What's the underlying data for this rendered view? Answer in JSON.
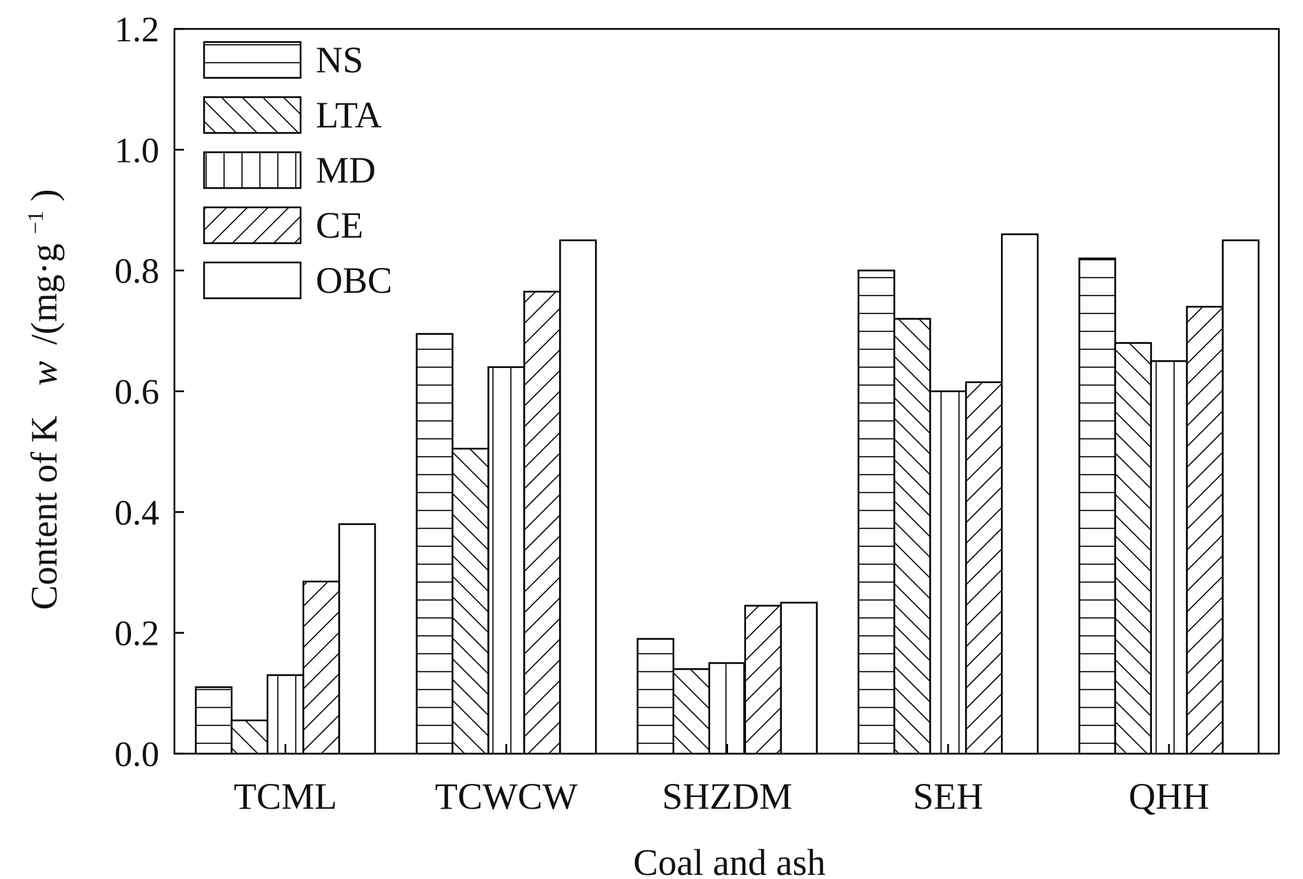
{
  "chart_data": {
    "type": "bar",
    "xlabel": "Coal and ash",
    "ylabel_prefix": "Content of K",
    "ylabel_var": "w",
    "ylabel_unit_open": "/(mg·g",
    "ylabel_unit_sup": "−1",
    "ylabel_unit_close": ")",
    "ylim": [
      0.0,
      1.2
    ],
    "yticks": [
      "0.0",
      "0.2",
      "0.4",
      "0.6",
      "0.8",
      "1.0",
      "1.2"
    ],
    "grid": false,
    "legend_position": "top-left",
    "categories": [
      "TCML",
      "TCWCW",
      "SHZDM",
      "SEH",
      "QHH"
    ],
    "series": [
      {
        "name": "NS",
        "pattern": "horizontal",
        "values": [
          0.11,
          0.695,
          0.19,
          0.8,
          0.82
        ]
      },
      {
        "name": "LTA",
        "pattern": "backslash",
        "values": [
          0.055,
          0.505,
          0.14,
          0.72,
          0.68
        ]
      },
      {
        "name": "MD",
        "pattern": "vertical",
        "values": [
          0.13,
          0.64,
          0.15,
          0.6,
          0.65
        ]
      },
      {
        "name": "CE",
        "pattern": "slash",
        "values": [
          0.285,
          0.765,
          0.245,
          0.615,
          0.74
        ]
      },
      {
        "name": "OBC",
        "pattern": "none",
        "values": [
          0.38,
          0.85,
          0.25,
          0.86,
          0.85
        ]
      }
    ]
  }
}
